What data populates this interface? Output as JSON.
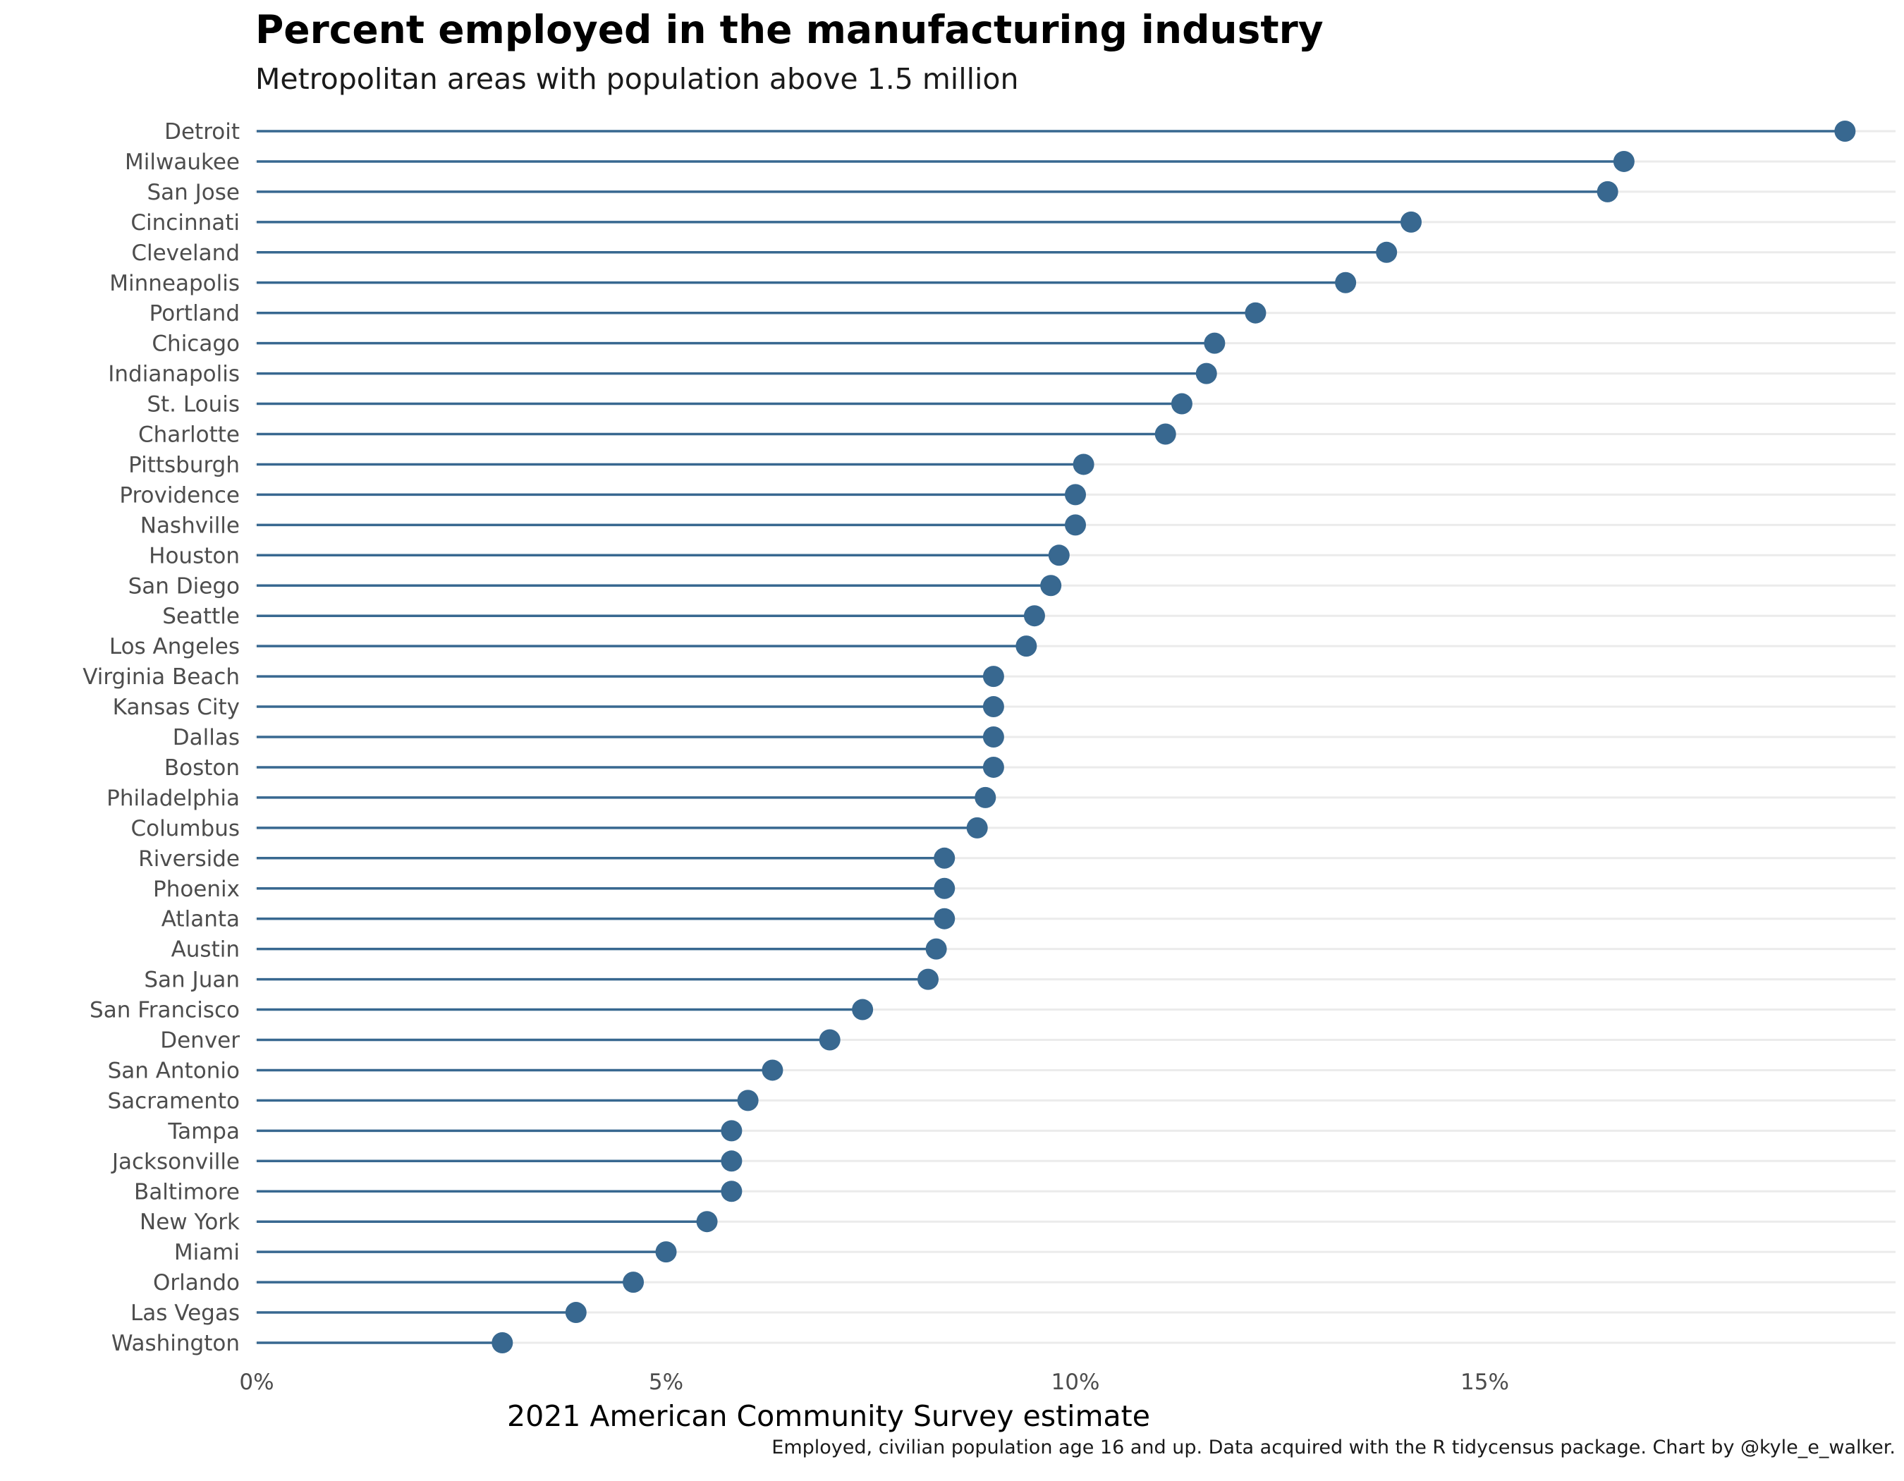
{
  "chart_data": {
    "type": "lollipop",
    "title": "Percent employed in the manufacturing industry",
    "subtitle": "Metropolitan areas with population above 1.5 million",
    "xlabel": "2021 American Community Survey estimate",
    "ylabel": "",
    "caption": "Employed, civilian population age 16 and up. Data acquired with the R tidycensus package. Chart by @kyle_e_walker.",
    "xlim": [
      0,
      19.5
    ],
    "x_ticks": [
      0,
      5,
      10,
      15
    ],
    "x_tick_labels": [
      "0%",
      "5%",
      "10%",
      "15%"
    ],
    "grid": "horizontal major lines",
    "color": "#386890",
    "categories": [
      "Detroit",
      "Milwaukee",
      "San Jose",
      "Cincinnati",
      "Cleveland",
      "Minneapolis",
      "Portland",
      "Chicago",
      "Indianapolis",
      "St. Louis",
      "Charlotte",
      "Pittsburgh",
      "Providence",
      "Nashville",
      "Houston",
      "San Diego",
      "Seattle",
      "Los Angeles",
      "Virginia Beach",
      "Kansas City",
      "Dallas",
      "Boston",
      "Philadelphia",
      "Columbus",
      "Riverside",
      "Phoenix",
      "Atlanta",
      "Austin",
      "San Juan",
      "San Francisco",
      "Denver",
      "San Antonio",
      "Sacramento",
      "Tampa",
      "Jacksonville",
      "Baltimore",
      "New York",
      "Miami",
      "Orlando",
      "Las Vegas",
      "Washington"
    ],
    "values": [
      19.4,
      16.7,
      16.5,
      14.1,
      13.8,
      13.3,
      12.2,
      11.7,
      11.6,
      11.3,
      11.1,
      10.1,
      10.0,
      10.0,
      9.8,
      9.7,
      9.5,
      9.4,
      9.0,
      9.0,
      9.0,
      9.0,
      8.9,
      8.8,
      8.4,
      8.4,
      8.4,
      8.3,
      8.2,
      7.4,
      7.0,
      6.3,
      6.0,
      5.8,
      5.8,
      5.8,
      5.5,
      5.0,
      4.6,
      3.9,
      3.0
    ]
  }
}
